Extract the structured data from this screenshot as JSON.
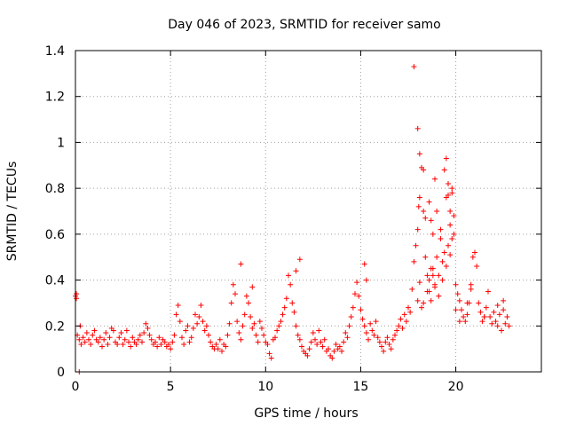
{
  "chart_data": {
    "type": "scatter",
    "title": "Day 046 of 2023, SRMTID for receiver samo",
    "xlabel": "GPS time / hours",
    "ylabel": "SRMTID / TECUs",
    "xlim": [
      0,
      24.5
    ],
    "ylim": [
      0,
      1.4
    ],
    "xticks": [
      0,
      5,
      10,
      15,
      20
    ],
    "yticks": [
      0,
      0.2,
      0.4,
      0.6,
      0.8,
      1,
      1.2,
      1.4
    ],
    "xtick_labels": [
      "0",
      "5",
      "10",
      "15",
      "20"
    ],
    "ytick_labels": [
      "0",
      "0.2",
      "0.4",
      "0.6",
      "0.8",
      "1",
      "1.2",
      "1.4"
    ],
    "grid": true,
    "marker": "plus",
    "color": "#ff0000",
    "x": [
      0.0,
      0.05,
      0.1,
      0.2,
      0.3,
      0.4,
      0.5,
      0.6,
      0.7,
      0.8,
      0.9,
      1.0,
      1.1,
      1.2,
      1.3,
      1.4,
      1.5,
      1.6,
      1.7,
      1.8,
      1.9,
      2.0,
      2.1,
      2.2,
      2.3,
      2.4,
      2.5,
      2.6,
      2.7,
      2.8,
      2.9,
      3.0,
      3.1,
      3.2,
      3.3,
      3.4,
      3.5,
      3.6,
      3.7,
      3.8,
      3.9,
      4.0,
      4.1,
      4.2,
      4.3,
      4.4,
      4.5,
      4.6,
      4.7,
      4.8,
      4.9,
      5.0,
      5.1,
      5.2,
      5.3,
      5.4,
      5.5,
      5.6,
      5.7,
      5.8,
      5.9,
      6.0,
      6.1,
      6.2,
      6.3,
      6.4,
      6.5,
      6.6,
      6.7,
      6.8,
      6.9,
      7.0,
      7.1,
      7.2,
      7.3,
      7.4,
      7.5,
      7.6,
      7.7,
      7.8,
      7.9,
      8.0,
      8.1,
      8.2,
      8.3,
      8.4,
      8.5,
      8.6,
      8.7,
      8.8,
      8.9,
      9.0,
      9.1,
      9.2,
      9.3,
      9.4,
      9.5,
      9.6,
      9.7,
      9.8,
      9.9,
      10.0,
      10.1,
      10.2,
      10.3,
      10.4,
      10.5,
      10.6,
      10.7,
      10.8,
      10.9,
      11.0,
      11.1,
      11.2,
      11.3,
      11.4,
      11.5,
      11.6,
      11.7,
      11.8,
      11.9,
      12.0,
      12.1,
      12.2,
      12.3,
      12.4,
      12.5,
      12.6,
      12.7,
      12.8,
      12.9,
      13.0,
      13.1,
      13.2,
      13.3,
      13.4,
      13.5,
      13.6,
      13.7,
      13.8,
      13.9,
      14.0,
      14.1,
      14.2,
      14.3,
      14.4,
      14.5,
      14.6,
      14.7,
      14.8,
      14.9,
      15.0,
      15.1,
      15.2,
      15.3,
      15.4,
      15.5,
      15.6,
      15.7,
      15.8,
      15.9,
      16.0,
      16.1,
      16.2,
      16.3,
      16.4,
      16.5,
      16.6,
      16.7,
      16.8,
      16.9,
      17.0,
      17.1,
      17.2,
      17.3,
      17.4,
      17.5,
      17.6,
      17.7,
      17.8,
      17.9,
      18.0,
      18.05,
      18.1,
      18.2,
      18.3,
      18.4,
      18.5,
      18.6,
      18.7,
      18.8,
      18.9,
      19.0,
      19.1,
      19.2,
      19.3,
      19.4,
      19.5,
      19.6,
      19.7,
      19.8,
      19.9,
      20.0,
      20.1,
      20.2,
      20.3,
      20.4,
      20.5,
      20.6,
      20.7,
      20.8,
      20.9,
      21.0,
      21.1,
      21.2,
      21.3,
      21.4,
      21.5,
      21.6,
      21.7,
      21.8,
      21.9,
      22.0,
      22.1,
      22.2,
      22.3,
      22.4,
      22.5,
      22.6,
      22.7,
      22.8,
      18.0,
      18.1,
      18.2,
      18.3,
      18.5,
      18.6,
      18.7,
      18.8,
      18.9,
      19.1,
      19.3,
      19.5,
      19.6,
      19.7,
      19.8,
      20.0,
      20.2,
      20.6,
      20.8,
      21.5,
      22.2,
      22.5,
      18.0,
      18.1,
      18.3,
      18.4,
      18.6,
      18.7,
      18.8,
      18.9,
      19.0,
      19.2,
      19.4,
      19.5,
      19.6,
      19.7,
      19.8,
      19.9,
      0.05,
      0.2,
      0.25,
      8.7,
      9.3,
      11.6,
      11.8,
      15.2,
      15.3,
      17.8
    ],
    "y": [
      0.33,
      0.34,
      0.16,
      0.14,
      0.12,
      0.15,
      0.13,
      0.17,
      0.14,
      0.12,
      0.16,
      0.18,
      0.14,
      0.13,
      0.15,
      0.11,
      0.14,
      0.17,
      0.12,
      0.15,
      0.19,
      0.18,
      0.13,
      0.12,
      0.15,
      0.17,
      0.12,
      0.14,
      0.18,
      0.13,
      0.11,
      0.15,
      0.13,
      0.12,
      0.14,
      0.16,
      0.13,
      0.17,
      0.21,
      0.19,
      0.16,
      0.14,
      0.12,
      0.13,
      0.11,
      0.15,
      0.12,
      0.14,
      0.13,
      0.11,
      0.12,
      0.1,
      0.13,
      0.16,
      0.25,
      0.29,
      0.22,
      0.15,
      0.12,
      0.18,
      0.2,
      0.13,
      0.15,
      0.19,
      0.25,
      0.21,
      0.24,
      0.29,
      0.22,
      0.18,
      0.2,
      0.16,
      0.13,
      0.11,
      0.1,
      0.12,
      0.1,
      0.14,
      0.09,
      0.12,
      0.11,
      0.16,
      0.21,
      0.3,
      0.38,
      0.34,
      0.22,
      0.17,
      0.14,
      0.2,
      0.25,
      0.33,
      0.3,
      0.24,
      0.19,
      0.21,
      0.16,
      0.13,
      0.22,
      0.19,
      0.16,
      0.13,
      0.12,
      0.08,
      0.06,
      0.14,
      0.15,
      0.18,
      0.2,
      0.22,
      0.25,
      0.28,
      0.32,
      0.42,
      0.38,
      0.3,
      0.26,
      0.2,
      0.16,
      0.14,
      0.11,
      0.09,
      0.08,
      0.07,
      0.1,
      0.13,
      0.17,
      0.14,
      0.12,
      0.18,
      0.13,
      0.11,
      0.14,
      0.09,
      0.1,
      0.07,
      0.06,
      0.09,
      0.12,
      0.1,
      0.11,
      0.09,
      0.13,
      0.17,
      0.15,
      0.2,
      0.24,
      0.28,
      0.34,
      0.39,
      0.33,
      0.27,
      0.23,
      0.2,
      0.17,
      0.14,
      0.21,
      0.18,
      0.16,
      0.22,
      0.15,
      0.13,
      0.11,
      0.09,
      0.13,
      0.15,
      0.12,
      0.1,
      0.14,
      0.16,
      0.18,
      0.2,
      0.23,
      0.19,
      0.25,
      0.22,
      0.28,
      0.26,
      0.36,
      0.48,
      0.55,
      0.62,
      0.72,
      0.76,
      0.89,
      0.7,
      0.5,
      0.42,
      0.35,
      0.31,
      0.45,
      0.38,
      0.5,
      0.42,
      0.58,
      0.48,
      0.52,
      0.76,
      0.82,
      0.7,
      0.78,
      0.6,
      0.38,
      0.34,
      0.31,
      0.27,
      0.24,
      0.22,
      0.25,
      0.3,
      0.38,
      0.5,
      0.52,
      0.46,
      0.3,
      0.26,
      0.22,
      0.24,
      0.28,
      0.35,
      0.24,
      0.21,
      0.26,
      0.22,
      0.2,
      0.25,
      0.18,
      0.27,
      0.21,
      0.24,
      0.2,
      0.31,
      0.39,
      0.28,
      0.3,
      0.35,
      0.4,
      0.45,
      0.42,
      0.37,
      0.33,
      0.4,
      0.46,
      0.55,
      0.51,
      0.58,
      0.27,
      0.22,
      0.3,
      0.36,
      0.24,
      0.29,
      0.31,
      1.06,
      0.95,
      0.88,
      0.67,
      0.74,
      0.66,
      0.6,
      0.84,
      0.7,
      0.62,
      0.88,
      0.93,
      0.77,
      0.64,
      0.8,
      0.68,
      0.32,
      0.0,
      0.2,
      0.47,
      0.37,
      0.44,
      0.49,
      0.47,
      0.4,
      1.33
    ]
  }
}
